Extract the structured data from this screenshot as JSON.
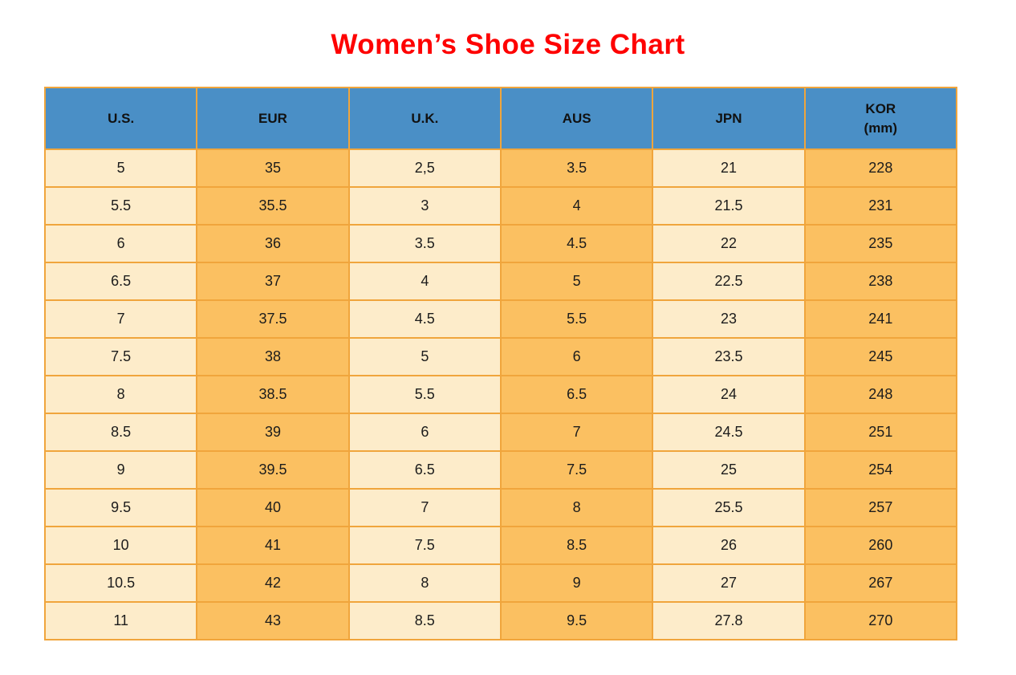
{
  "title": "Women’s Shoe Size Chart",
  "header": {
    "us": "U.S.",
    "eur": "EUR",
    "uk": "U.K.",
    "aus": "AUS",
    "jpn": "JPN",
    "kor_line1": "KOR",
    "kor_line2": "(mm)"
  },
  "chart_data": {
    "type": "table",
    "title": "Women’s Shoe Size Chart",
    "columns": [
      "U.S.",
      "EUR",
      "U.K.",
      "AUS",
      "JPN",
      "KOR (mm)"
    ],
    "rows": [
      [
        "5",
        "35",
        "2,5",
        "3.5",
        "21",
        "228"
      ],
      [
        "5.5",
        "35.5",
        "3",
        "4",
        "21.5",
        "231"
      ],
      [
        "6",
        "36",
        "3.5",
        "4.5",
        "22",
        "235"
      ],
      [
        "6.5",
        "37",
        "4",
        "5",
        "22.5",
        "238"
      ],
      [
        "7",
        "37.5",
        "4.5",
        "5.5",
        "23",
        "241"
      ],
      [
        "7.5",
        "38",
        "5",
        "6",
        "23.5",
        "245"
      ],
      [
        "8",
        "38.5",
        "5.5",
        "6.5",
        "24",
        "248"
      ],
      [
        "8.5",
        "39",
        "6",
        "7",
        "24.5",
        "251"
      ],
      [
        "9",
        "39.5",
        "6.5",
        "7.5",
        "25",
        "254"
      ],
      [
        "9.5",
        "40",
        "7",
        "8",
        "25.5",
        "257"
      ],
      [
        "10",
        "41",
        "7.5",
        "8.5",
        "26",
        "260"
      ],
      [
        "10.5",
        "42",
        "8",
        "9",
        "27",
        "267"
      ],
      [
        "11",
        "43",
        "8.5",
        "9.5",
        "27.8",
        "270"
      ]
    ]
  },
  "colors": {
    "title": "#fe0000",
    "header_bg": "#4a8fc6",
    "column_light": "#fdecca",
    "column_dark": "#fbc061",
    "border": "#f0a53c",
    "text": "#1c1c1c"
  }
}
